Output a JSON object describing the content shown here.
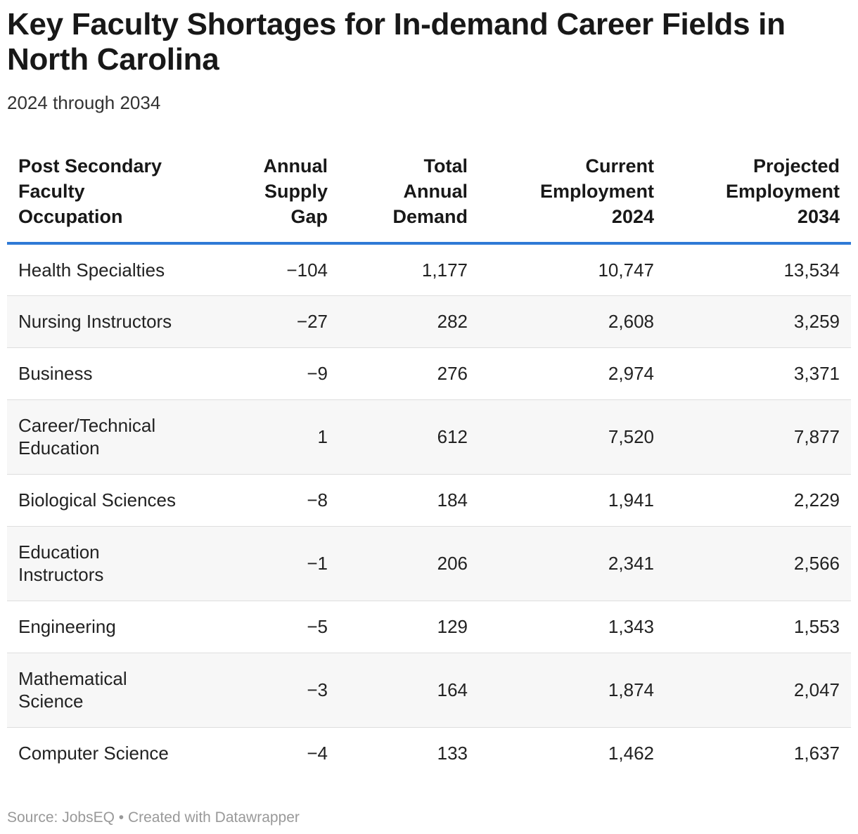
{
  "chart_data": {
    "type": "table",
    "title": "Key Faculty Shortages for In-demand Career Fields in North Carolina",
    "subtitle": "2024 through 2034",
    "columns": [
      [
        "Post Secondary",
        "Faculty",
        "Occupation"
      ],
      [
        "Annual",
        "Supply",
        "Gap"
      ],
      [
        "Total",
        "Annual",
        "Demand"
      ],
      [
        "Current",
        "Employment",
        "2024"
      ],
      [
        "Projected",
        "Employment",
        "2034"
      ]
    ],
    "rows": [
      {
        "occupation": [
          "Health Specialties"
        ],
        "gap": "−104",
        "demand": "1,177",
        "current": "10,747",
        "projected": "13,534"
      },
      {
        "occupation": [
          "Nursing Instructors"
        ],
        "gap": "−27",
        "demand": "282",
        "current": "2,608",
        "projected": "3,259"
      },
      {
        "occupation": [
          "Business"
        ],
        "gap": "−9",
        "demand": "276",
        "current": "2,974",
        "projected": "3,371"
      },
      {
        "occupation": [
          "Career/Technical",
          "Education"
        ],
        "gap": "1",
        "demand": "612",
        "current": "7,520",
        "projected": "7,877"
      },
      {
        "occupation": [
          "Biological Sciences"
        ],
        "gap": "−8",
        "demand": "184",
        "current": "1,941",
        "projected": "2,229"
      },
      {
        "occupation": [
          "Education",
          "Instructors"
        ],
        "gap": "−1",
        "demand": "206",
        "current": "2,341",
        "projected": "2,566"
      },
      {
        "occupation": [
          "Engineering"
        ],
        "gap": "−5",
        "demand": "129",
        "current": "1,343",
        "projected": "1,553"
      },
      {
        "occupation": [
          "Mathematical",
          "Science"
        ],
        "gap": "−3",
        "demand": "164",
        "current": "1,874",
        "projected": "2,047"
      },
      {
        "occupation": [
          "Computer Science"
        ],
        "gap": "−4",
        "demand": "133",
        "current": "1,462",
        "projected": "1,637"
      }
    ],
    "footer": {
      "source": "Source: JobsEQ",
      "separator": "•",
      "credit": "Created with Datawrapper"
    }
  },
  "colors": {
    "header_rule": "#2f7ad6",
    "alt_row": "#f7f7f7",
    "row_border": "#dedede",
    "footer_text": "#999999"
  }
}
